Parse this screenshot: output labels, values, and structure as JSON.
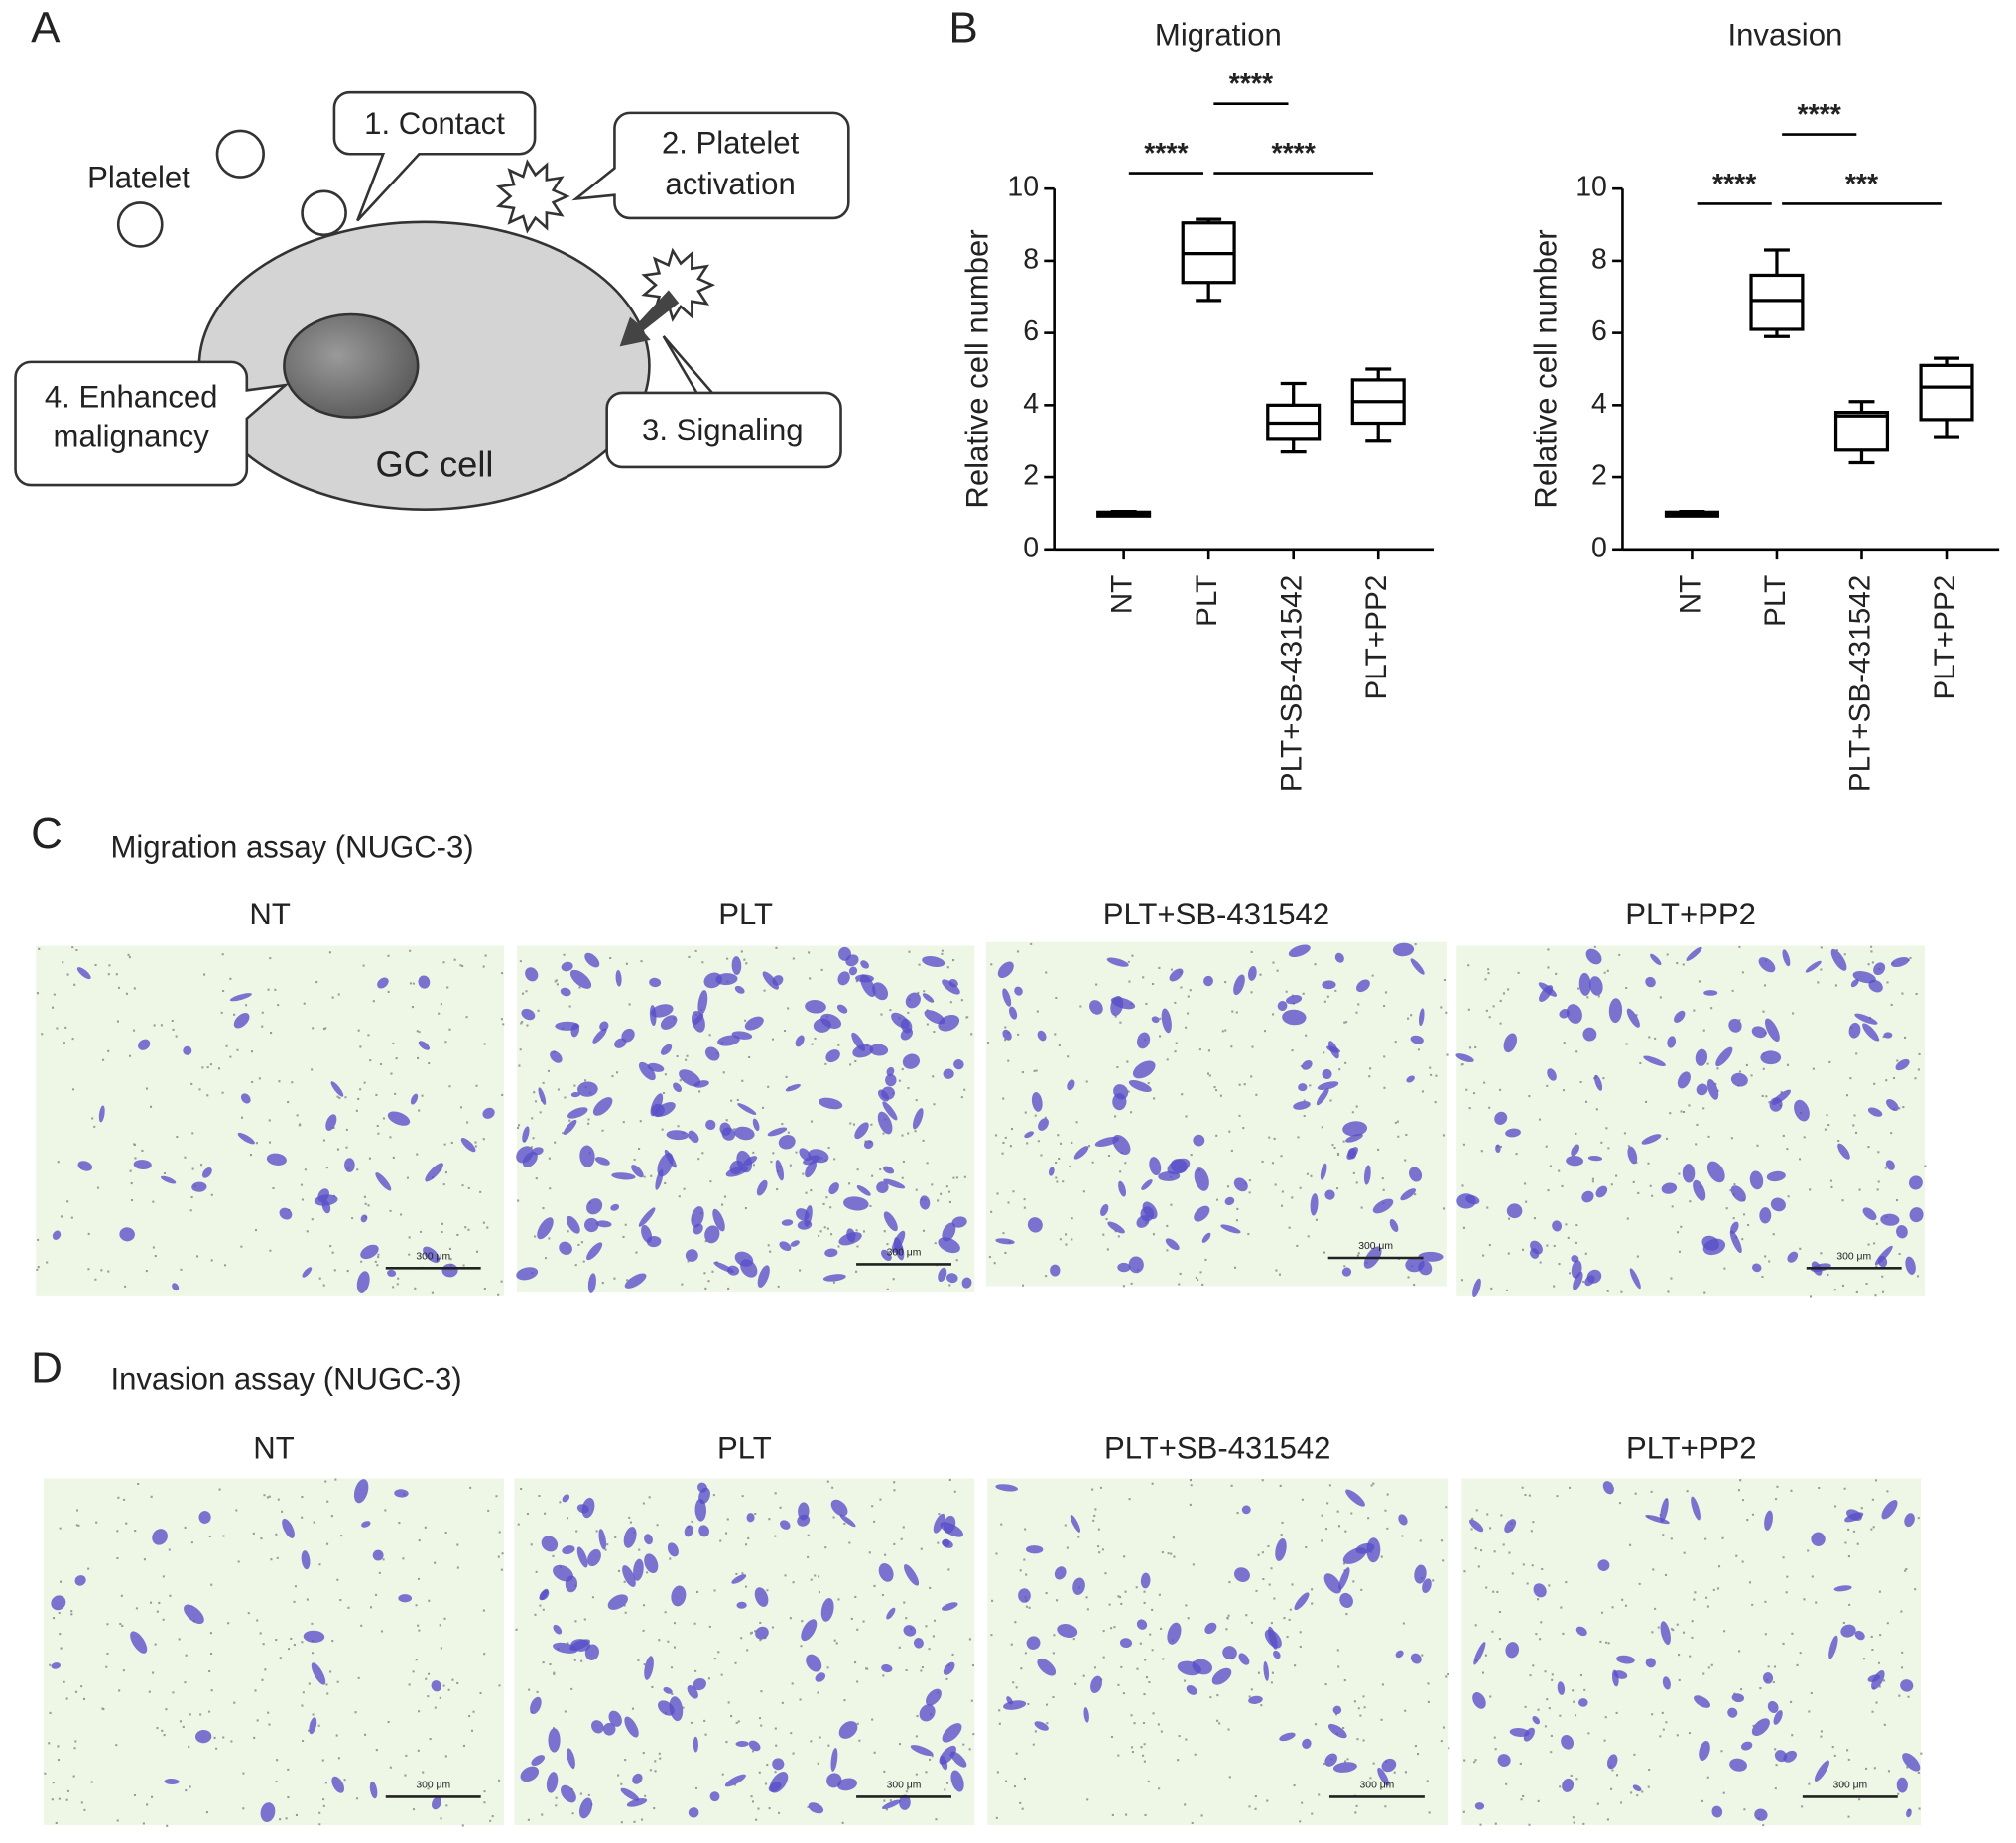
{
  "panel_labels": [
    "A",
    "B",
    "C",
    "D"
  ],
  "diagram": {
    "platelet": "Platelet",
    "contact": "1. Contact",
    "activation": [
      "2. Platelet",
      "activation"
    ],
    "signaling": "3. Signaling",
    "malignancy": [
      "4. Enhanced",
      "malignancy"
    ],
    "cell": "GC cell"
  },
  "chart_data": [
    {
      "type": "box",
      "title": "Migration",
      "y_label": "Relative cell number",
      "categories": [
        "NT",
        "PLT",
        "PLT+SB-431542",
        "PLT+PP2"
      ],
      "values": [
        {
          "min": 0.95,
          "q1": 0.97,
          "median": 1.0,
          "q3": 1.03,
          "max": 1.05
        },
        {
          "min": 6.9,
          "q1": 7.4,
          "median": 8.2,
          "q3": 9.05,
          "max": 9.15
        },
        {
          "min": 2.7,
          "q1": 3.05,
          "median": 3.5,
          "q3": 4.0,
          "max": 4.6
        },
        {
          "min": 3.0,
          "q1": 3.5,
          "median": 4.1,
          "q3": 4.7,
          "max": 5.0
        }
      ],
      "color": "#000000",
      "ylim": [
        0,
        10
      ],
      "yticks": [
        0,
        2,
        4,
        6,
        8,
        10
      ],
      "annotations": [
        {
          "from": "NT",
          "to": "PLT",
          "label": "****"
        },
        {
          "from": "PLT",
          "to": "PLT+PP2",
          "label": "****"
        },
        {
          "from": "PLT",
          "to": "PLT+SB-431542",
          "label": "****"
        }
      ]
    },
    {
      "type": "box",
      "title": "Invasion",
      "y_label": "Relative cell number",
      "categories": [
        "NT",
        "PLT",
        "PLT+SB-431542",
        "PLT+PP2"
      ],
      "values": [
        {
          "min": 0.95,
          "q1": 0.97,
          "median": 1.0,
          "q3": 1.03,
          "max": 1.05
        },
        {
          "min": 5.9,
          "q1": 6.1,
          "median": 6.9,
          "q3": 7.6,
          "max": 8.3
        },
        {
          "min": 2.4,
          "q1": 2.75,
          "median": 3.7,
          "q3": 3.8,
          "max": 4.1
        },
        {
          "min": 3.1,
          "q1": 3.6,
          "median": 4.5,
          "q3": 5.1,
          "max": 5.3
        }
      ],
      "color": "#000000",
      "ylim": [
        0,
        10
      ],
      "yticks": [
        0,
        2,
        4,
        6,
        8,
        10
      ],
      "annotations": [
        {
          "from": "NT",
          "to": "PLT",
          "label": "****"
        },
        {
          "from": "PLT",
          "to": "PLT+PP2",
          "label": "***"
        },
        {
          "from": "PLT",
          "to": "PLT+SB-431542",
          "label": "****"
        }
      ]
    }
  ],
  "micrographs": [
    {
      "title": "Migration assay (NUGC-3)",
      "panels": [
        "NT",
        "PLT",
        "PLT+SB-431542",
        "PLT+PP2"
      ],
      "scale_bar": "300 μm"
    },
    {
      "title": "Invasion assay (NUGC-3)",
      "panels": [
        "NT",
        "PLT",
        "PLT+SB-431542",
        "PLT+PP2"
      ],
      "scale_bar": "300 μm"
    }
  ]
}
